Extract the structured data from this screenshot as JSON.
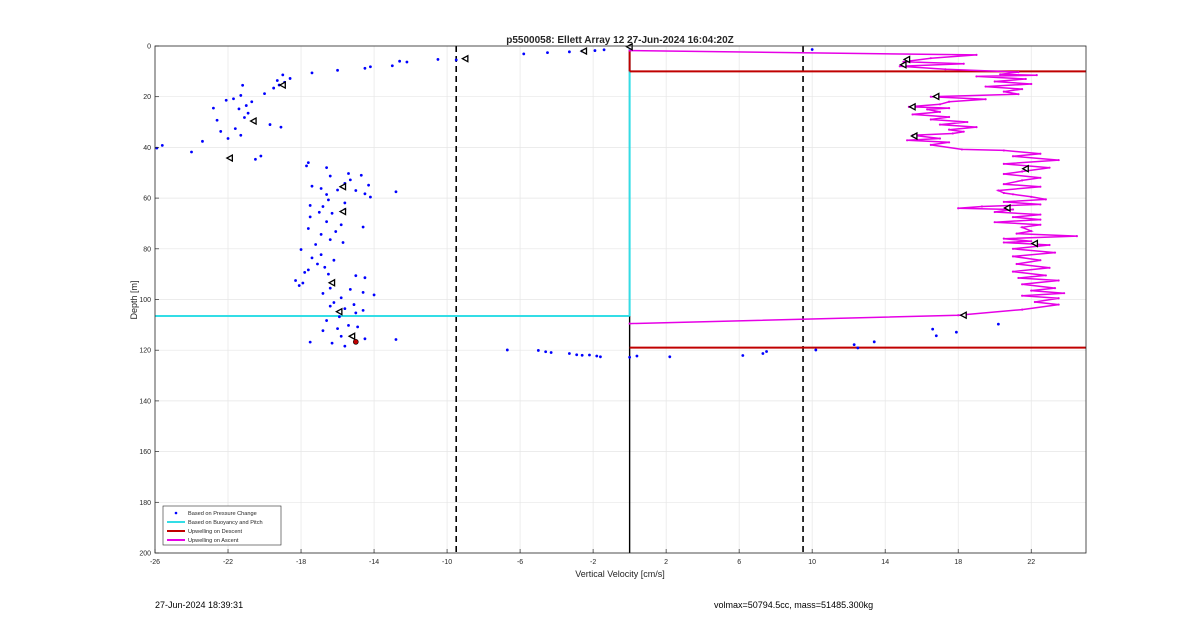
{
  "chart_data": {
    "type": "scatter",
    "title": "p5500058: Ellett Array 12 27-Jun-2024 16:04:20Z",
    "xlabel": "Vertical Velocity [cm/s]",
    "ylabel": "Depth [m]",
    "xlim": [
      -26,
      25
    ],
    "ylim": [
      0,
      200
    ],
    "y_reversed": true,
    "grid": true,
    "xticks": [
      -26,
      -22,
      -18,
      -14,
      -10,
      -6,
      -2,
      2,
      6,
      10,
      14,
      18,
      22
    ],
    "yticks": [
      0,
      20,
      40,
      60,
      80,
      100,
      120,
      140,
      160,
      180,
      200
    ],
    "legend_position": "bottom-left",
    "legend": [
      {
        "label": "Based on Pressure Change",
        "color": "#0000ff"
      },
      {
        "label": "Based on Buoyancy and Pitch",
        "color": "#33dde6"
      },
      {
        "label": "Upwelling on Descent",
        "color": "#c00000"
      },
      {
        "label": "Upwelling on Ascent",
        "color": "#e600e6"
      }
    ],
    "pressure_points": [
      [
        0,
        0.5
      ],
      [
        -1.4,
        1.5
      ],
      [
        -1.9,
        1.8
      ],
      [
        -2.6,
        2.0
      ],
      [
        -3.3,
        2.3
      ],
      [
        -4.5,
        2.6
      ],
      [
        -5.8,
        3.1
      ],
      [
        -8.9,
        4.6
      ],
      [
        -9.5,
        5.5
      ],
      [
        -10.5,
        5.3
      ],
      [
        -12.2,
        6.3
      ],
      [
        -12.6,
        6.0
      ],
      [
        -13.0,
        7.8
      ],
      [
        -14.2,
        8.2
      ],
      [
        -14.5,
        8.8
      ],
      [
        -16.0,
        9.6
      ],
      [
        -17.4,
        10.6
      ],
      [
        -19.0,
        11.4
      ],
      [
        -18.6,
        12.8
      ],
      [
        -19.3,
        13.6
      ],
      [
        -18.9,
        14.3
      ],
      [
        -19.2,
        15.4
      ],
      [
        -21.2,
        15.5
      ],
      [
        -19.5,
        16.6
      ],
      [
        -20.0,
        18.8
      ],
      [
        -21.3,
        19.5
      ],
      [
        -21.7,
        20.8
      ],
      [
        -22.1,
        21.4
      ],
      [
        -20.7,
        22.0
      ],
      [
        -21.0,
        23.5
      ],
      [
        -22.8,
        24.5
      ],
      [
        -21.4,
        24.8
      ],
      [
        -20.9,
        26.5
      ],
      [
        -21.1,
        28.2
      ],
      [
        -22.6,
        29.3
      ],
      [
        -19.7,
        31.0
      ],
      [
        -19.1,
        32.0
      ],
      [
        -21.6,
        32.6
      ],
      [
        -22.4,
        33.7
      ],
      [
        -21.3,
        35.2
      ],
      [
        -22.0,
        36.5
      ],
      [
        -23.4,
        37.6
      ],
      [
        -25.6,
        39.2
      ],
      [
        -25.9,
        40.3
      ],
      [
        -24.0,
        41.8
      ],
      [
        -20.2,
        43.4
      ],
      [
        -20.5,
        44.7
      ],
      [
        -17.6,
        46.0
      ],
      [
        -17.7,
        47.3
      ],
      [
        -16.6,
        48.0
      ],
      [
        -15.4,
        50.3
      ],
      [
        -14.7,
        51.0
      ],
      [
        -16.4,
        51.3
      ],
      [
        -15.3,
        52.8
      ],
      [
        -15.6,
        54.2
      ],
      [
        -14.3,
        54.9
      ],
      [
        -17.4,
        55.3
      ],
      [
        -16.9,
        56.2
      ],
      [
        -16.0,
        56.8
      ],
      [
        -15.0,
        57.0
      ],
      [
        -12.8,
        57.5
      ],
      [
        -14.5,
        58.3
      ],
      [
        -16.6,
        58.6
      ],
      [
        -14.2,
        59.6
      ],
      [
        -16.5,
        60.7
      ],
      [
        -15.6,
        61.9
      ],
      [
        -17.5,
        62.9
      ],
      [
        -16.8,
        63.3
      ],
      [
        -15.6,
        64.5
      ],
      [
        -17.0,
        65.6
      ],
      [
        -16.3,
        66.0
      ],
      [
        -17.5,
        67.4
      ],
      [
        -16.6,
        69.3
      ],
      [
        -15.8,
        70.5
      ],
      [
        -14.6,
        71.4
      ],
      [
        -17.6,
        72.0
      ],
      [
        -16.1,
        73.2
      ],
      [
        -16.9,
        74.3
      ],
      [
        -16.4,
        76.4
      ],
      [
        -15.7,
        77.5
      ],
      [
        -17.2,
        78.3
      ],
      [
        -18.0,
        80.3
      ],
      [
        -16.9,
        82.3
      ],
      [
        -17.4,
        83.6
      ],
      [
        -16.2,
        84.5
      ],
      [
        -17.1,
        86.0
      ],
      [
        -16.7,
        87.3
      ],
      [
        -17.6,
        88.3
      ],
      [
        -17.8,
        89.3
      ],
      [
        -16.5,
        90.0
      ],
      [
        -15.0,
        90.6
      ],
      [
        -14.5,
        91.4
      ],
      [
        -18.3,
        92.5
      ],
      [
        -17.9,
        93.5
      ],
      [
        -18.1,
        94.5
      ],
      [
        -16.4,
        95.5
      ],
      [
        -15.3,
        96.0
      ],
      [
        -14.6,
        97.2
      ],
      [
        -16.8,
        97.6
      ],
      [
        -14.0,
        98.2
      ],
      [
        -15.8,
        99.3
      ],
      [
        -16.2,
        101.2
      ],
      [
        -15.1,
        102.0
      ],
      [
        -16.4,
        102.6
      ],
      [
        -15.6,
        103.6
      ],
      [
        -14.6,
        104.3
      ],
      [
        -15.0,
        105.3
      ],
      [
        -15.9,
        106.8
      ],
      [
        -16.6,
        108.3
      ],
      [
        -15.4,
        110.2
      ],
      [
        -14.9,
        110.8
      ],
      [
        -16.0,
        111.5
      ],
      [
        -16.8,
        112.3
      ],
      [
        -14.5,
        115.5
      ],
      [
        -12.8,
        115.8
      ],
      [
        -15.8,
        114.5
      ],
      [
        -17.5,
        116.8
      ],
      [
        -16.3,
        117.2
      ],
      [
        -15.6,
        118.4
      ],
      [
        -6.7,
        119.9
      ],
      [
        -5.0,
        120.1
      ],
      [
        -4.6,
        120.6
      ],
      [
        -4.3,
        120.9
      ],
      [
        -3.3,
        121.3
      ],
      [
        -2.9,
        121.8
      ],
      [
        -2.6,
        122.0
      ],
      [
        -2.2,
        121.9
      ],
      [
        -1.8,
        122.3
      ],
      [
        -1.6,
        122.6
      ],
      [
        0,
        122.8
      ],
      [
        2.2,
        122.6
      ],
      [
        0.4,
        122.3
      ],
      [
        6.2,
        122.1
      ],
      [
        7.3,
        121.3
      ],
      [
        7.5,
        120.5
      ],
      [
        10.2,
        119.9
      ],
      [
        12.3,
        117.8
      ],
      [
        13.4,
        116.7
      ],
      [
        12.5,
        119.1
      ],
      [
        16.6,
        111.7
      ],
      [
        16.8,
        114.3
      ],
      [
        17.9,
        112.9
      ],
      [
        20.2,
        109.7
      ],
      [
        10.0,
        1.4
      ]
    ],
    "buoyancy_pitch_line": {
      "depth_m": 106.5,
      "x_from": -26,
      "x_to": 0
    },
    "descent_upwelling": {
      "from_depth_m": 10,
      "to_depth_m": 119,
      "x_to": 25
    },
    "ascent_upwelling": [
      [
        0,
        1.8
      ],
      [
        19.0,
        3.5
      ],
      [
        16.5,
        4.8
      ],
      [
        15.0,
        6.2
      ],
      [
        18.3,
        7.0
      ],
      [
        14.8,
        8.0
      ],
      [
        17.3,
        9.2
      ],
      [
        21.3,
        10.3
      ],
      [
        20.3,
        11.2
      ],
      [
        22.3,
        11.5
      ],
      [
        19.0,
        12.0
      ],
      [
        21.7,
        13.0
      ],
      [
        20.0,
        14.0
      ],
      [
        22.0,
        15.0
      ],
      [
        19.5,
        16.0
      ],
      [
        21.5,
        17.0
      ],
      [
        20.5,
        18.0
      ],
      [
        21.3,
        19.0
      ],
      [
        16.5,
        20.0
      ],
      [
        19.5,
        21.0
      ],
      [
        17.5,
        22.0
      ],
      [
        17.0,
        23.0
      ],
      [
        15.3,
        24.0
      ],
      [
        17.5,
        24.5
      ],
      [
        16.3,
        25.0
      ],
      [
        17.0,
        26.0
      ],
      [
        15.5,
        27.0
      ],
      [
        17.5,
        28.0
      ],
      [
        16.5,
        29.0
      ],
      [
        18.5,
        30.0
      ],
      [
        17.0,
        31.0
      ],
      [
        19.0,
        32.0
      ],
      [
        17.5,
        33.0
      ],
      [
        18.3,
        33.8
      ],
      [
        17.7,
        34.5
      ],
      [
        15.5,
        35.2
      ],
      [
        17.0,
        36.5
      ],
      [
        15.2,
        37.2
      ],
      [
        17.5,
        38.0
      ],
      [
        16.5,
        39.0
      ],
      [
        18.2,
        40.8
      ],
      [
        20.5,
        41.2
      ],
      [
        22.5,
        42.5
      ],
      [
        21.0,
        43.5
      ],
      [
        23.5,
        45.0
      ],
      [
        20.5,
        46.5
      ],
      [
        23.0,
        48.0
      ],
      [
        21.5,
        49.5
      ],
      [
        20.5,
        50.5
      ],
      [
        22.5,
        52.0
      ],
      [
        21.5,
        53.0
      ],
      [
        20.5,
        54.5
      ],
      [
        22.5,
        55.5
      ],
      [
        20.2,
        57.0
      ],
      [
        20.5,
        58.0
      ],
      [
        21.0,
        58.5
      ],
      [
        22.0,
        59.5
      ],
      [
        22.8,
        60.5
      ],
      [
        20.5,
        61.5
      ],
      [
        22.5,
        62.5
      ],
      [
        19.3,
        63.3
      ],
      [
        18.0,
        64.0
      ],
      [
        21.0,
        64.5
      ],
      [
        20.0,
        65.5
      ],
      [
        22.5,
        66.5
      ],
      [
        21.0,
        67.5
      ],
      [
        22.5,
        68.5
      ],
      [
        20.0,
        69.5
      ],
      [
        22.5,
        70.5
      ],
      [
        21.5,
        71.5
      ],
      [
        22.0,
        73.0
      ],
      [
        21.2,
        74.0
      ],
      [
        24.5,
        75.0
      ],
      [
        20.5,
        76.0
      ],
      [
        22.0,
        77.0
      ],
      [
        20.5,
        77.5
      ],
      [
        23.0,
        78.5
      ],
      [
        21.0,
        80.0
      ],
      [
        23.3,
        81.5
      ],
      [
        21.0,
        83.0
      ],
      [
        22.5,
        84.5
      ],
      [
        21.2,
        86.0
      ],
      [
        23.0,
        87.5
      ],
      [
        21.0,
        89.0
      ],
      [
        22.8,
        90.5
      ],
      [
        21.3,
        91.5
      ],
      [
        23.5,
        92.5
      ],
      [
        21.5,
        94.0
      ],
      [
        23.3,
        95.5
      ],
      [
        22.0,
        96.5
      ],
      [
        23.8,
        97.5
      ],
      [
        21.5,
        98.5
      ],
      [
        23.5,
        99.5
      ],
      [
        22.2,
        101.0
      ],
      [
        23.5,
        102.0
      ],
      [
        21.5,
        104.0
      ],
      [
        18.0,
        106.2
      ],
      [
        0,
        109.5
      ]
    ],
    "triangle_markers": [
      [
        -2.5,
        2.0
      ],
      [
        -9.0,
        5.0
      ],
      [
        0,
        0.3
      ],
      [
        15.2,
        5.3
      ],
      [
        15.0,
        7.4
      ],
      [
        -19.0,
        15.4
      ],
      [
        -20.6,
        29.6
      ],
      [
        -21.9,
        44.2
      ],
      [
        16.8,
        19.9
      ],
      [
        15.5,
        24.0
      ],
      [
        15.6,
        35.5
      ],
      [
        21.7,
        48.4
      ],
      [
        20.7,
        63.9
      ],
      [
        -15.7,
        55.5
      ],
      [
        -15.7,
        65.3
      ],
      [
        22.2,
        77.9
      ],
      [
        -16.3,
        93.4
      ],
      [
        -15.9,
        104.8
      ],
      [
        18.3,
        106.2
      ],
      [
        -15.2,
        114.5
      ]
    ],
    "red_dot": [
      -15.0,
      116.7
    ],
    "dashed_limits_x": [
      -9.5,
      9.5
    ]
  },
  "footer": {
    "timestamp": "27-Jun-2024 18:39:31",
    "info": "volmax=50794.5cc, mass=51485.300kg"
  }
}
